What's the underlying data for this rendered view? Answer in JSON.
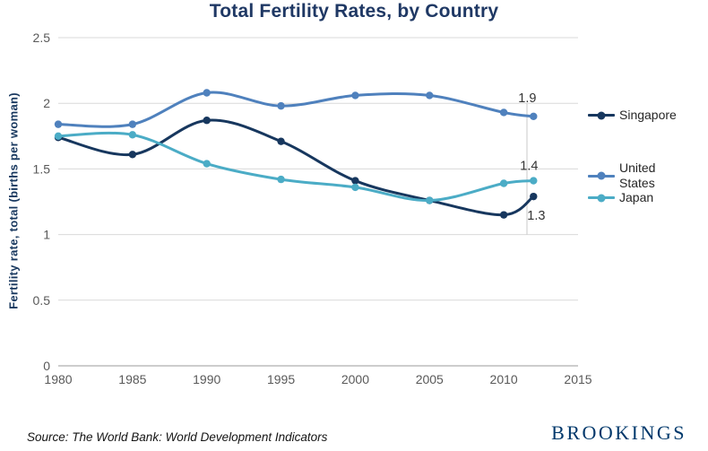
{
  "title": "Total Fertility Rates, by Country",
  "source": "Source: The World Bank: World Development Indicators",
  "brand": "BROOKINGS",
  "colors": {
    "title": "#1f3864",
    "y_axis_title": "#17375e",
    "axis_text": "#595959",
    "gridline": "#d9d9d9",
    "brand": "#00386b"
  },
  "chart_data": {
    "type": "line",
    "title": "Total Fertility Rates, by Country",
    "xlabel": "",
    "ylabel": "Fertility rate, total (births per woman)",
    "x": [
      1980,
      1985,
      1990,
      1995,
      2000,
      2005,
      2010,
      2012
    ],
    "series": [
      {
        "name": "Singapore",
        "color": "#17375e",
        "values": [
          1.74,
          1.61,
          1.87,
          1.71,
          1.41,
          1.26,
          1.15,
          1.29
        ],
        "end_label": "1.3"
      },
      {
        "name": "United States",
        "color": "#4f81bd",
        "values": [
          1.84,
          1.84,
          2.08,
          1.98,
          2.06,
          2.06,
          1.93,
          1.9
        ],
        "end_label": "1.9"
      },
      {
        "name": "Japan",
        "color": "#4bacc6",
        "values": [
          1.75,
          1.76,
          1.54,
          1.42,
          1.36,
          1.26,
          1.39,
          1.41
        ],
        "end_label": "1.4"
      }
    ],
    "xlim": [
      1980,
      2015
    ],
    "ylim": [
      0,
      2.5
    ],
    "xticks": [
      1980,
      1985,
      1990,
      1995,
      2000,
      2005,
      2010,
      2015
    ],
    "yticks": [
      0,
      0.5,
      1,
      1.5,
      2,
      2.5
    ],
    "ytick_labels": [
      "0",
      "0.5",
      "1",
      "1.5",
      "2",
      "2.5"
    ],
    "grid": true,
    "legend_position": "right",
    "line_style": "smoothed-with-markers"
  }
}
